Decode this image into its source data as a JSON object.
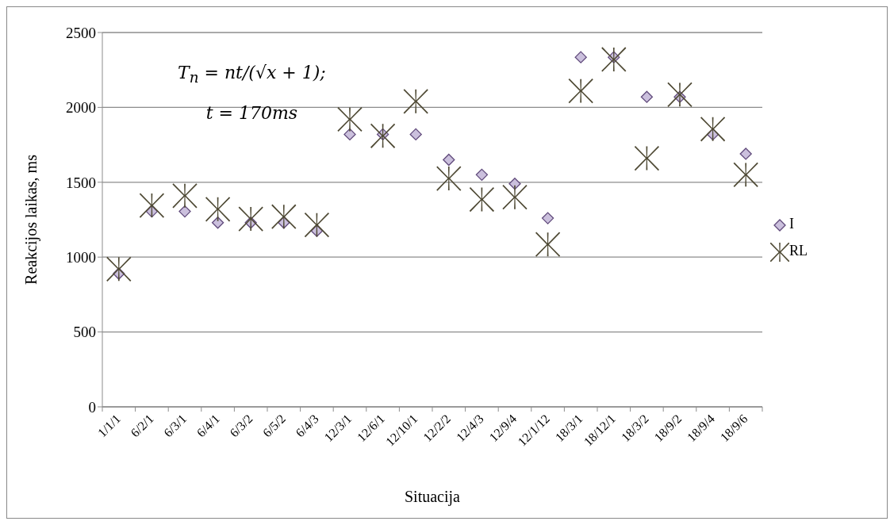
{
  "chart_data": {
    "type": "scatter",
    "xlabel": "Situacija",
    "ylabel": "Reakcijos laikas, ms",
    "categories": [
      "1/1/1",
      "6/2/1",
      "6/3/1",
      "6/4/1",
      "6/3/2",
      "6/5/2",
      "6/4/3",
      "12/3/1",
      "12/6/1",
      "12/10/1",
      "12/2/2",
      "12/4/3",
      "12/9/4",
      "12/1/12",
      "18/3/1",
      "18/12/1",
      "18/3/2",
      "18/9/2",
      "18/9/4",
      "18/9/6"
    ],
    "series": [
      {
        "name": "I",
        "color": "#cbc0dd",
        "marker": "diamond",
        "values": [
          890,
          1305,
          1305,
          1230,
          1230,
          1230,
          1175,
          1820,
          1820,
          1820,
          1650,
          1550,
          1490,
          1260,
          2335,
          2335,
          2070,
          2070,
          1820,
          1690
        ]
      },
      {
        "name": "RL",
        "color": "#4f4a35",
        "marker": "star",
        "values": [
          920,
          1345,
          1410,
          1320,
          1255,
          1270,
          1215,
          1920,
          1810,
          2040,
          1525,
          1385,
          1400,
          1085,
          2110,
          2320,
          1660,
          2085,
          1855,
          1550
        ]
      }
    ],
    "ylim": [
      0,
      2500
    ],
    "yticks": [
      0,
      500,
      1000,
      1500,
      2000,
      2500
    ],
    "grid": "y",
    "legend": "right",
    "annotations": [
      "T$_{n}$ = nt/(√x + 1);",
      "t = 170ms"
    ]
  }
}
